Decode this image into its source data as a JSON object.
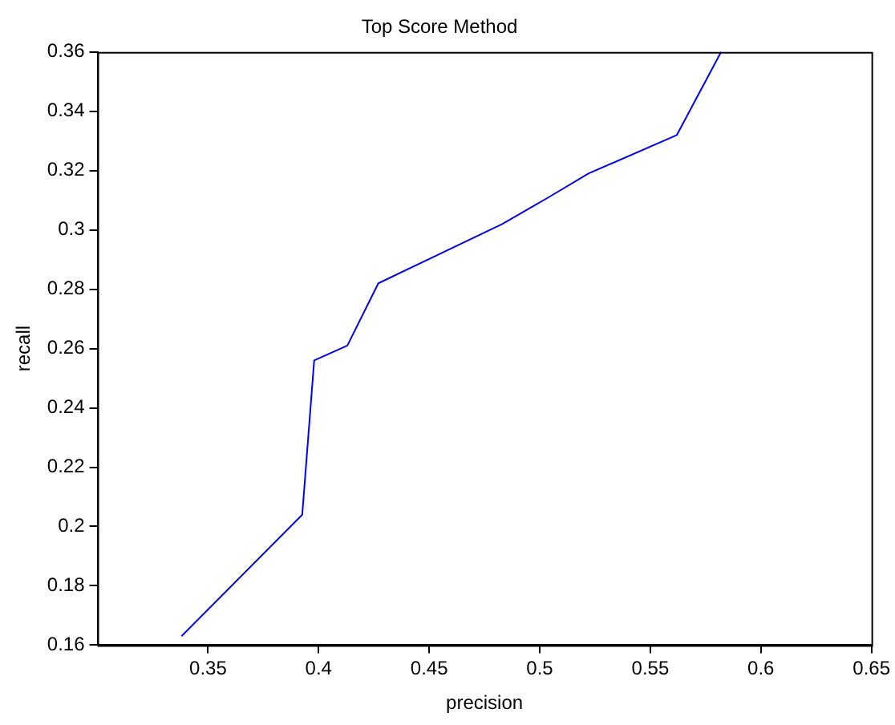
{
  "chart_data": {
    "type": "line",
    "title": "Top Score Method",
    "xlabel": "precision",
    "ylabel": "recall",
    "x": [
      0.338,
      0.3926,
      0.398,
      0.413,
      0.427,
      0.483,
      0.504,
      0.522,
      0.562,
      0.582
    ],
    "series": [
      {
        "color": "#0000ff",
        "values": [
          0.163,
          0.204,
          0.256,
          0.261,
          0.282,
          0.302,
          0.311,
          0.319,
          0.332,
          0.36
        ]
      }
    ],
    "xlim": [
      0.3,
      0.65
    ],
    "xticks": [
      0.35,
      0.4,
      0.45,
      0.5,
      0.55,
      0.6,
      0.65
    ],
    "ylim": [
      0.16,
      0.36
    ],
    "yticks": [
      0.16,
      0.18,
      0.2,
      0.22,
      0.24,
      0.26,
      0.28,
      0.3,
      0.32,
      0.34,
      0.36
    ],
    "grid": false,
    "legend": false,
    "marker": "none",
    "line_style": "solid"
  }
}
